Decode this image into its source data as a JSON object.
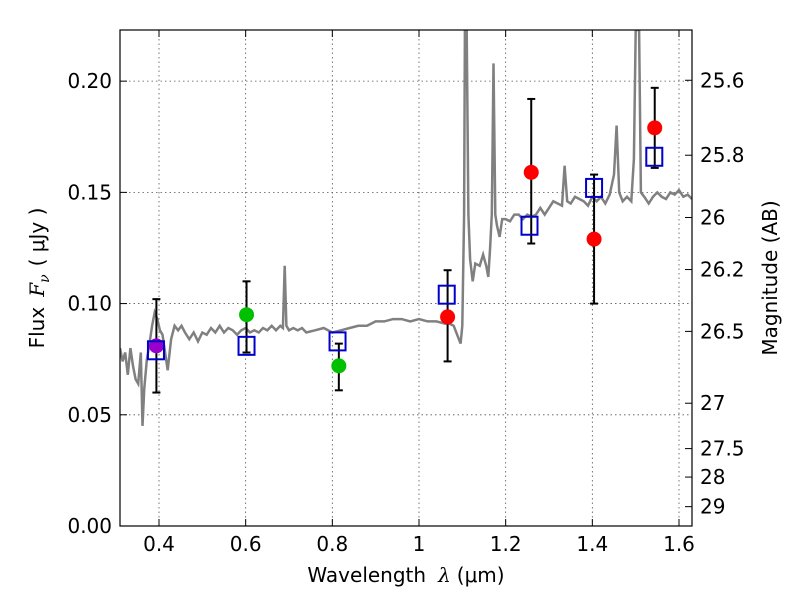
{
  "chart_data": {
    "type": "scatter",
    "xlabel_text": "Wavelength",
    "xlabel_symbol": "λ",
    "xlabel_units": "(μm)",
    "ylabel_text": "Flux",
    "ylabel_symbol": "F",
    "ylabel_subscript": "ν",
    "ylabel_units": "( μJy )",
    "y2label": "Magnitude (AB)",
    "xlim": [
      0.31,
      1.63
    ],
    "ylim": [
      0.0,
      0.223
    ],
    "x_ticks": [
      0.4,
      0.6,
      0.8,
      1.0,
      1.2,
      1.4,
      1.6
    ],
    "x_tick_labels": [
      "0.4",
      "0.6",
      "0.8",
      "1",
      "1.2",
      "1.4",
      "1.6"
    ],
    "y_ticks": [
      0.0,
      0.05,
      0.1,
      0.15,
      0.2
    ],
    "y_tick_labels": [
      "0.00",
      "0.05",
      "0.10",
      "0.15",
      "0.20"
    ],
    "y2_ticks": [
      {
        "label": "25.6",
        "flux": 0.2004
      },
      {
        "label": "25.8",
        "flux": 0.1667
      },
      {
        "label": "26",
        "flux": 0.1387
      },
      {
        "label": "26.2",
        "flux": 0.1153
      },
      {
        "label": "26.5",
        "flux": 0.0875
      },
      {
        "label": "27",
        "flux": 0.0552
      },
      {
        "label": "27.5",
        "flux": 0.0348
      },
      {
        "label": "28",
        "flux": 0.022
      },
      {
        "label": "29",
        "flux": 0.0087
      }
    ],
    "colors": {
      "spectrum": "#808080",
      "model": "#0000cc",
      "red": "#ff0000",
      "green": "#00c000",
      "purple": "#9900cc",
      "errorbar": "#000000"
    },
    "model_squares": [
      {
        "x": 0.393,
        "y": 0.079
      },
      {
        "x": 0.602,
        "y": 0.081
      },
      {
        "x": 0.812,
        "y": 0.083
      },
      {
        "x": 1.064,
        "y": 0.104
      },
      {
        "x": 1.255,
        "y": 0.135
      },
      {
        "x": 1.404,
        "y": 0.152
      },
      {
        "x": 1.543,
        "y": 0.166
      }
    ],
    "observed": [
      {
        "x": 0.394,
        "y": 0.081,
        "err_low": 0.06,
        "err_high": 0.102,
        "color": "purple"
      },
      {
        "x": 0.602,
        "y": 0.095,
        "err_low": 0.078,
        "err_high": 0.11,
        "color": "green"
      },
      {
        "x": 0.815,
        "y": 0.072,
        "err_low": 0.061,
        "err_high": 0.082,
        "color": "green"
      },
      {
        "x": 1.066,
        "y": 0.094,
        "err_low": 0.074,
        "err_high": 0.115,
        "color": "red"
      },
      {
        "x": 1.259,
        "y": 0.159,
        "err_low": 0.127,
        "err_high": 0.192,
        "color": "red"
      },
      {
        "x": 1.404,
        "y": 0.129,
        "err_low": 0.1,
        "err_high": 0.158,
        "color": "red"
      },
      {
        "x": 1.544,
        "y": 0.179,
        "err_low": 0.161,
        "err_high": 0.197,
        "color": "red"
      }
    ],
    "spectrum": [
      [
        0.31,
        0.08
      ],
      [
        0.316,
        0.074
      ],
      [
        0.322,
        0.078
      ],
      [
        0.328,
        0.068
      ],
      [
        0.334,
        0.08
      ],
      [
        0.34,
        0.072
      ],
      [
        0.346,
        0.066
      ],
      [
        0.352,
        0.064
      ],
      [
        0.358,
        0.078
      ],
      [
        0.362,
        0.045
      ],
      [
        0.366,
        0.062
      ],
      [
        0.372,
        0.075
      ],
      [
        0.378,
        0.082
      ],
      [
        0.384,
        0.09
      ],
      [
        0.39,
        0.096
      ],
      [
        0.396,
        0.093
      ],
      [
        0.402,
        0.088
      ],
      [
        0.408,
        0.086
      ],
      [
        0.414,
        0.078
      ],
      [
        0.42,
        0.07
      ],
      [
        0.428,
        0.084
      ],
      [
        0.436,
        0.09
      ],
      [
        0.444,
        0.088
      ],
      [
        0.452,
        0.09
      ],
      [
        0.46,
        0.087
      ],
      [
        0.47,
        0.084
      ],
      [
        0.48,
        0.087
      ],
      [
        0.49,
        0.083
      ],
      [
        0.5,
        0.087
      ],
      [
        0.51,
        0.086
      ],
      [
        0.52,
        0.089
      ],
      [
        0.53,
        0.087
      ],
      [
        0.54,
        0.09
      ],
      [
        0.55,
        0.087
      ],
      [
        0.56,
        0.089
      ],
      [
        0.57,
        0.088
      ],
      [
        0.58,
        0.086
      ],
      [
        0.59,
        0.088
      ],
      [
        0.6,
        0.089
      ],
      [
        0.61,
        0.087
      ],
      [
        0.62,
        0.088
      ],
      [
        0.63,
        0.087
      ],
      [
        0.64,
        0.089
      ],
      [
        0.65,
        0.088
      ],
      [
        0.66,
        0.09
      ],
      [
        0.67,
        0.088
      ],
      [
        0.68,
        0.09
      ],
      [
        0.686,
        0.089
      ],
      [
        0.69,
        0.117
      ],
      [
        0.694,
        0.09
      ],
      [
        0.7,
        0.088
      ],
      [
        0.71,
        0.089
      ],
      [
        0.72,
        0.088
      ],
      [
        0.73,
        0.089
      ],
      [
        0.74,
        0.087
      ],
      [
        0.76,
        0.088
      ],
      [
        0.78,
        0.089
      ],
      [
        0.8,
        0.087
      ],
      [
        0.82,
        0.088
      ],
      [
        0.84,
        0.089
      ],
      [
        0.86,
        0.09
      ],
      [
        0.88,
        0.09
      ],
      [
        0.9,
        0.092
      ],
      [
        0.92,
        0.092
      ],
      [
        0.94,
        0.093
      ],
      [
        0.96,
        0.093
      ],
      [
        0.98,
        0.092
      ],
      [
        1.0,
        0.093
      ],
      [
        1.02,
        0.092
      ],
      [
        1.04,
        0.092
      ],
      [
        1.06,
        0.091
      ],
      [
        1.07,
        0.091
      ],
      [
        1.08,
        0.09
      ],
      [
        1.09,
        0.085
      ],
      [
        1.096,
        0.082
      ],
      [
        1.1,
        0.09
      ],
      [
        1.104,
        0.14
      ],
      [
        1.106,
        0.223
      ],
      [
        1.11,
        0.223
      ],
      [
        1.114,
        0.14
      ],
      [
        1.118,
        0.12
      ],
      [
        1.124,
        0.11
      ],
      [
        1.13,
        0.118
      ],
      [
        1.14,
        0.117
      ],
      [
        1.148,
        0.122
      ],
      [
        1.155,
        0.117
      ],
      [
        1.16,
        0.112
      ],
      [
        1.164,
        0.125
      ],
      [
        1.168,
        0.14
      ],
      [
        1.172,
        0.208
      ],
      [
        1.176,
        0.14
      ],
      [
        1.18,
        0.135
      ],
      [
        1.186,
        0.13
      ],
      [
        1.192,
        0.138
      ],
      [
        1.2,
        0.138
      ],
      [
        1.21,
        0.137
      ],
      [
        1.22,
        0.14
      ],
      [
        1.23,
        0.14
      ],
      [
        1.24,
        0.138
      ],
      [
        1.25,
        0.14
      ],
      [
        1.26,
        0.139
      ],
      [
        1.27,
        0.14
      ],
      [
        1.28,
        0.143
      ],
      [
        1.29,
        0.14
      ],
      [
        1.3,
        0.143
      ],
      [
        1.31,
        0.146
      ],
      [
        1.32,
        0.145
      ],
      [
        1.33,
        0.144
      ],
      [
        1.336,
        0.162
      ],
      [
        1.342,
        0.146
      ],
      [
        1.35,
        0.145
      ],
      [
        1.36,
        0.148
      ],
      [
        1.37,
        0.147
      ],
      [
        1.38,
        0.146
      ],
      [
        1.39,
        0.144
      ],
      [
        1.4,
        0.148
      ],
      [
        1.41,
        0.146
      ],
      [
        1.42,
        0.148
      ],
      [
        1.43,
        0.145
      ],
      [
        1.44,
        0.149
      ],
      [
        1.45,
        0.158
      ],
      [
        1.456,
        0.18
      ],
      [
        1.462,
        0.15
      ],
      [
        1.47,
        0.146
      ],
      [
        1.48,
        0.148
      ],
      [
        1.49,
        0.146
      ],
      [
        1.496,
        0.165
      ],
      [
        1.5,
        0.223
      ],
      [
        1.508,
        0.223
      ],
      [
        1.512,
        0.15
      ],
      [
        1.52,
        0.148
      ],
      [
        1.53,
        0.145
      ],
      [
        1.54,
        0.148
      ],
      [
        1.55,
        0.15
      ],
      [
        1.56,
        0.148
      ],
      [
        1.57,
        0.147
      ],
      [
        1.58,
        0.15
      ],
      [
        1.59,
        0.149
      ],
      [
        1.6,
        0.151
      ],
      [
        1.61,
        0.148
      ],
      [
        1.62,
        0.149
      ],
      [
        1.63,
        0.147
      ]
    ]
  }
}
